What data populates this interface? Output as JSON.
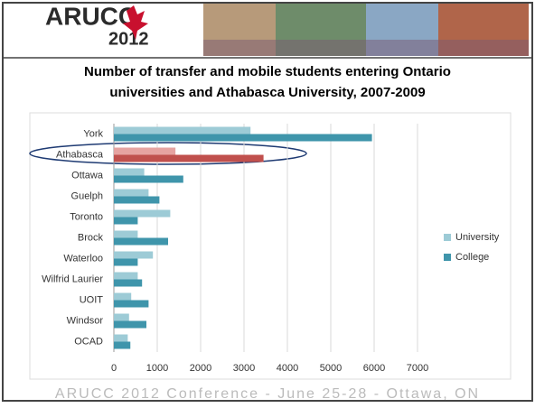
{
  "slide": {
    "logo": "ARUCC",
    "logo_year": "2012",
    "footer": "ARUCC 2012 Conference - June 25-28 - Ottawa, ON"
  },
  "chart_data": {
    "type": "hbar",
    "title": "Number of transfer and mobile students entering Ontario universities and Athabasca University, 2007-2009",
    "categories": [
      "York",
      "Athabasca",
      "Ottawa",
      "Guelph",
      "Toronto",
      "Brock",
      "Waterloo",
      "Wilfrid Laurier",
      "UOIT",
      "Windsor",
      "OCAD"
    ],
    "series": [
      {
        "name": "University",
        "color": "#9dcbd6",
        "values": [
          3150,
          1420,
          700,
          800,
          1300,
          550,
          900,
          550,
          400,
          350,
          320
        ],
        "colors": [
          "#9dcbd6",
          "#e6a3a1",
          "#9dcbd6",
          "#9dcbd6",
          "#9dcbd6",
          "#9dcbd6",
          "#9dcbd6",
          "#9dcbd6",
          "#9dcbd6",
          "#9dcbd6",
          "#9dcbd6"
        ]
      },
      {
        "name": "College",
        "color": "#3f95ab",
        "values": [
          5950,
          3450,
          1600,
          1050,
          550,
          1250,
          550,
          650,
          800,
          750,
          380
        ],
        "colors": [
          "#3f95ab",
          "#c0504d",
          "#3f95ab",
          "#3f95ab",
          "#3f95ab",
          "#3f95ab",
          "#3f95ab",
          "#3f95ab",
          "#3f95ab",
          "#3f95ab",
          "#3f95ab"
        ]
      }
    ],
    "xlim": [
      0,
      7000
    ],
    "xticks": [
      0,
      1000,
      2000,
      3000,
      4000,
      5000,
      6000,
      7000
    ],
    "grid": true,
    "legend": "right"
  }
}
